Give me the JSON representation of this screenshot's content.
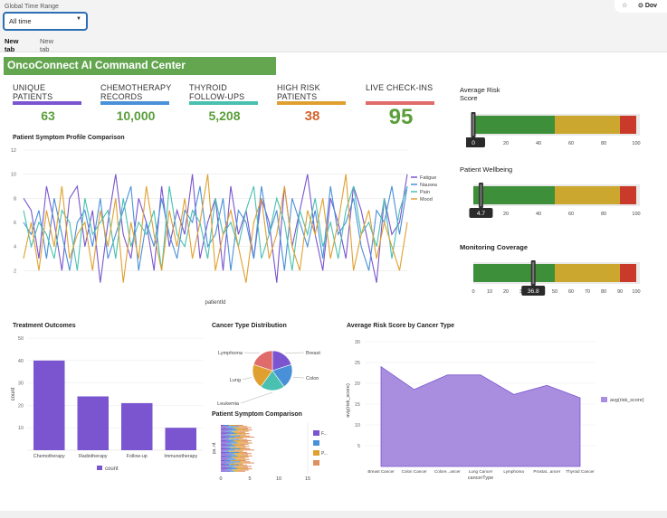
{
  "browser": {
    "download_label": "Dov"
  },
  "filter": {
    "label": "Global Time Range",
    "value": "All time"
  },
  "tabs": [
    {
      "label": "New tab"
    },
    {
      "label": "New tab"
    }
  ],
  "dashboard": {
    "title": "OncoConnect AI Command Center"
  },
  "kpis": [
    {
      "label": "UNIQUE PATIENTS",
      "value": "63",
      "color": "#5a9e3a",
      "bar_color": "#7a55cf"
    },
    {
      "label": "CHEMOTHERAPY RECORDS",
      "value": "10,000",
      "color": "#5a9e3a",
      "bar_color": "#4a90d9"
    },
    {
      "label": "THYROID FOLLOW-UPS",
      "value": "5,208",
      "color": "#5a9e3a",
      "bar_color": "#49c0b0"
    },
    {
      "label": "HIGH RISK PATIENTS",
      "value": "38",
      "color": "#d4632b",
      "bar_color": "#e0a030"
    },
    {
      "label": "LIVE CHECK-INS",
      "value": "95",
      "color": "#5a9e3a",
      "bar_color": "#e06b6b"
    }
  ],
  "gauges": [
    {
      "title": "Average Risk Score",
      "value": 0,
      "readout": "0",
      "ticks": [
        "0",
        "20",
        "40",
        "60",
        "80",
        "100"
      ]
    },
    {
      "title": "Patient Wellbeing",
      "value": 4.7,
      "readout": "4.7",
      "ticks": [
        "0",
        "20",
        "40",
        "60",
        "80",
        "100"
      ]
    },
    {
      "title": "Monitoring Coverage",
      "value": 36.8,
      "readout": "36.8",
      "ticks": [
        "0",
        "10",
        "20",
        "30",
        "40",
        "50",
        "60",
        "70",
        "80",
        "90",
        "100"
      ]
    }
  ],
  "colors": {
    "green": "#3d8f3a",
    "yellow": "#cba72f",
    "red": "#c93a2a",
    "purple": "#7a55cf"
  },
  "chart_data": [
    {
      "type": "line",
      "title": "Patient Symptom Profile Comparison",
      "xlabel": "patientId",
      "ylim": [
        0,
        12
      ],
      "yticks": [
        "2",
        "4",
        "6",
        "8",
        "10",
        "12"
      ],
      "series": [
        {
          "name": "Fatigue",
          "color": "#7a55cf",
          "values": [
            8,
            7,
            3,
            9,
            6,
            2,
            8,
            9,
            4,
            7,
            1,
            6,
            10,
            5,
            3,
            8,
            6,
            2,
            9,
            4,
            7,
            5,
            10,
            3,
            6,
            8,
            2,
            9,
            5,
            7,
            3,
            8,
            6,
            1,
            9,
            4,
            7,
            10,
            5,
            2,
            8,
            6,
            3,
            9,
            7,
            4,
            1,
            8,
            5,
            6,
            10
          ]
        },
        {
          "name": "Nausea",
          "color": "#4a90d9",
          "values": [
            6,
            5,
            7,
            3,
            8,
            5,
            2,
            6,
            7,
            4,
            8,
            3,
            5,
            7,
            9,
            2,
            6,
            4,
            8,
            5,
            3,
            7,
            6,
            9,
            4,
            5,
            8,
            2,
            7,
            6,
            3,
            9,
            5,
            7,
            2,
            8,
            6,
            4,
            7,
            3,
            9,
            5,
            6,
            8,
            4,
            2,
            7,
            6,
            9,
            5,
            9
          ]
        },
        {
          "name": "Pain",
          "color": "#49c0b0",
          "values": [
            7,
            4,
            6,
            5,
            3,
            7,
            6,
            2,
            8,
            5,
            6,
            7,
            3,
            8,
            4,
            6,
            5,
            7,
            2,
            9,
            5,
            4,
            7,
            6,
            3,
            8,
            5,
            6,
            4,
            7,
            9,
            3,
            5,
            8,
            6,
            2,
            7,
            5,
            8,
            4,
            6,
            3,
            7,
            9,
            5,
            6,
            4,
            8,
            3,
            7,
            9
          ]
        },
        {
          "name": "Mood",
          "color": "#e0a030",
          "values": [
            3,
            6,
            2,
            7,
            4,
            9,
            3,
            5,
            6,
            2,
            7,
            4,
            8,
            1,
            6,
            3,
            9,
            5,
            2,
            7,
            4,
            8,
            3,
            6,
            10,
            2,
            5,
            7,
            4,
            1,
            6,
            8,
            3,
            5,
            9,
            4,
            2,
            7,
            5,
            8,
            3,
            6,
            10,
            2,
            5,
            7,
            3,
            6,
            4,
            2,
            6
          ]
        }
      ]
    },
    {
      "type": "bar",
      "title": "Treatment Outcomes",
      "categories": [
        "Chemotherapy",
        "Radiotherapy",
        "Follow-up",
        "Immunotherapy"
      ],
      "values": [
        40,
        24,
        21,
        10
      ],
      "ylabel": "count",
      "ylim": [
        0,
        50
      ],
      "yticks": [
        "10",
        "20",
        "30",
        "40",
        "50"
      ],
      "legend": "count"
    },
    {
      "type": "pie",
      "title": "Cancer Type Distribution",
      "categories": [
        "Breast",
        "Colon",
        "Leukemia",
        "Lung",
        "Lymphoma"
      ],
      "values": [
        20,
        20,
        20,
        20,
        20
      ],
      "colors": [
        "#7a55cf",
        "#4a90d9",
        "#49c0b0",
        "#e0a030",
        "#e06b6b"
      ]
    },
    {
      "type": "bar",
      "title": "Patient Symptom Comparison",
      "ylabel": "pa..nt",
      "xticks": [
        "0",
        "5",
        "10",
        "15"
      ],
      "legend": [
        "F...",
        "",
        "P...",
        ""
      ]
    },
    {
      "type": "area",
      "title": "Average Risk Score by Cancer Type",
      "categories": [
        "Breast Cancer",
        "Colon Cancer",
        "Colore...ancer",
        "Lung Cancer",
        "Lymphoma",
        "Prostat...ancer",
        "Thyroid Cancer"
      ],
      "values": [
        24,
        18.5,
        22,
        22,
        17.3,
        19.5,
        16.5
      ],
      "xlabel": "cancerType",
      "ylabel": "avg(risk_score)",
      "ylim": [
        0,
        30
      ],
      "yticks": [
        "5",
        "10",
        "15",
        "20",
        "25",
        "30"
      ],
      "legend": "avg(risk_score)"
    }
  ]
}
